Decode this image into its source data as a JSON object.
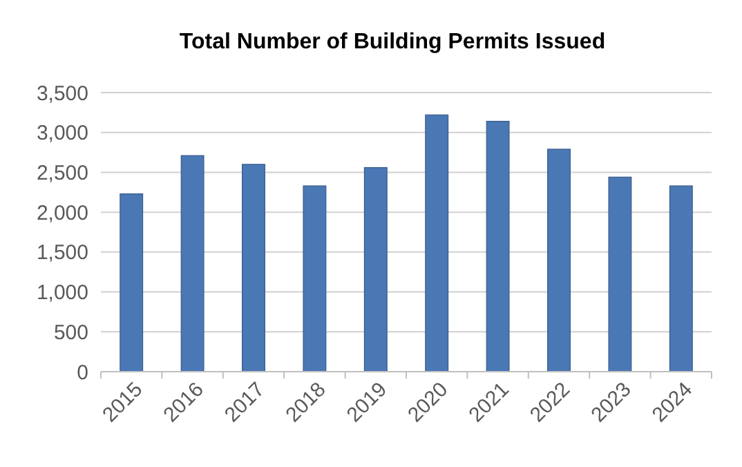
{
  "chart_data": {
    "type": "bar",
    "title": "Total Number of Building Permits Issued",
    "categories": [
      "2015",
      "2016",
      "2017",
      "2018",
      "2019",
      "2020",
      "2021",
      "2022",
      "2023",
      "2024"
    ],
    "values": [
      2230,
      2710,
      2600,
      2330,
      2560,
      3220,
      3140,
      2790,
      2440,
      2330
    ],
    "color": "#4a78b5",
    "ylim": [
      0,
      3500
    ],
    "yticks": [
      {
        "value": 0,
        "label": "0"
      },
      {
        "value": 500,
        "label": "500"
      },
      {
        "value": 1000,
        "label": "1,000"
      },
      {
        "value": 1500,
        "label": "1,500"
      },
      {
        "value": 2000,
        "label": "2,000"
      },
      {
        "value": 2500,
        "label": "2,500"
      },
      {
        "value": 3000,
        "label": "3,000"
      },
      {
        "value": 3500,
        "label": "3,500"
      }
    ],
    "grid": "y"
  }
}
